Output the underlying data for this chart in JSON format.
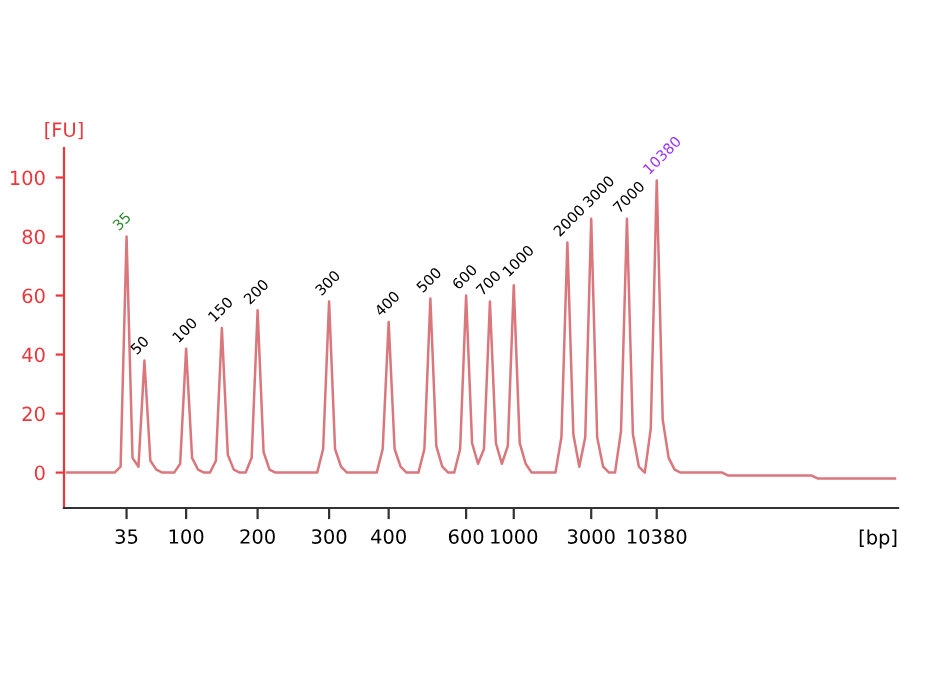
{
  "chart_data": {
    "type": "line",
    "xlabel": "[bp]",
    "ylabel": "[FU]",
    "categories": [
      null,
      null,
      null,
      null,
      null,
      null,
      null,
      null,
      null,
      null,
      "35",
      null,
      null,
      null,
      null,
      null,
      null,
      null,
      null,
      null,
      "100",
      null,
      null,
      null,
      null,
      null,
      null,
      null,
      null,
      null,
      null,
      null,
      "200",
      null,
      null,
      null,
      null,
      null,
      null,
      null,
      null,
      null,
      null,
      null,
      "300",
      null,
      null,
      null,
      null,
      null,
      null,
      null,
      null,
      null,
      "400",
      null,
      null,
      null,
      null,
      null,
      null,
      null,
      null,
      null,
      null,
      null,
      null,
      "600",
      null,
      null,
      null,
      null,
      null,
      null,
      null,
      "1000",
      null,
      null,
      null,
      null,
      null,
      null,
      null,
      null,
      null,
      null,
      null,
      null,
      "3000",
      null,
      null,
      null,
      null,
      null,
      null,
      null,
      null,
      null,
      null,
      "10380",
      null,
      null,
      null,
      null,
      null,
      null,
      null,
      null,
      null,
      null,
      null,
      null,
      null,
      null,
      null,
      null,
      null,
      null,
      null,
      null,
      null,
      null,
      null,
      null,
      null,
      null,
      null,
      null,
      null,
      null,
      null,
      null,
      null,
      null,
      null,
      null,
      null,
      null,
      null,
      null
    ],
    "series": [
      {
        "color": "#d9777d",
        "values": [
          0,
          0,
          0,
          0,
          0,
          0,
          0,
          0,
          0,
          2,
          80,
          5,
          2,
          38,
          4,
          1,
          0,
          0,
          0,
          3,
          42,
          5,
          1,
          0,
          0,
          4,
          49,
          6,
          1,
          0,
          0,
          5,
          55,
          7,
          1,
          0,
          0,
          0,
          0,
          0,
          0,
          0,
          0,
          8,
          58,
          8,
          2,
          0,
          0,
          0,
          0,
          0,
          0,
          8,
          51,
          8,
          2,
          0,
          0,
          0,
          8,
          59,
          9,
          2,
          0,
          0,
          8,
          60,
          10,
          3,
          8,
          58,
          10,
          3,
          9,
          63.5,
          10,
          3,
          0,
          0,
          0,
          0,
          0,
          12,
          78,
          13,
          2,
          12,
          86,
          12,
          2,
          0,
          0,
          14,
          86,
          13,
          2,
          0,
          15,
          99,
          18,
          5,
          1,
          0,
          0,
          0,
          0,
          0,
          0,
          0,
          0,
          -1,
          -1,
          -1,
          -1,
          -1,
          -1,
          -1,
          -1,
          -1,
          -1,
          -1,
          -1,
          -1,
          -1,
          -1,
          -2,
          -2,
          -2,
          -2,
          -2,
          -2,
          -2,
          -2,
          -2,
          -2,
          -2,
          -2,
          -2,
          -2
        ]
      }
    ],
    "ylim": [
      -12,
      110
    ],
    "yticks": [
      0,
      20,
      40,
      60,
      80,
      100
    ],
    "grid": false,
    "legend": false,
    "marker": "none",
    "line_style": "solid",
    "annotations": [
      {
        "text": "35",
        "x": "35",
        "y": 80
      },
      {
        "text": "50",
        "y": 38
      },
      {
        "text": "100",
        "x": "100",
        "y": 42
      },
      {
        "text": "150",
        "y": 49
      },
      {
        "text": "200",
        "x": "200",
        "y": 55
      },
      {
        "text": "300",
        "x": "300",
        "y": 58
      },
      {
        "text": "400",
        "x": "400",
        "y": 51
      },
      {
        "text": "500",
        "y": 59
      },
      {
        "text": "600",
        "x": "600",
        "y": 60
      },
      {
        "text": "700",
        "y": 58
      },
      {
        "text": "1000",
        "x": "1000",
        "y": 63.5
      },
      {
        "text": "2000",
        "y": 78
      },
      {
        "text": "3000",
        "x": "3000",
        "y": 86
      },
      {
        "text": "7000",
        "y": 86
      },
      {
        "text": "10380",
        "x": "10380",
        "y": 99
      }
    ]
  }
}
